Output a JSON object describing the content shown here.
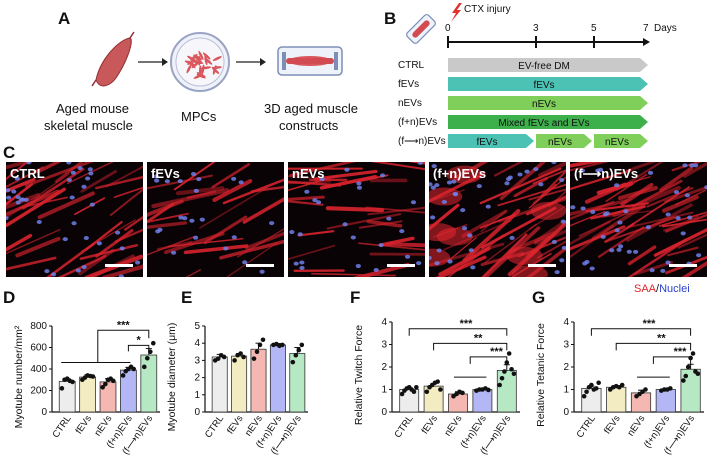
{
  "panel_labels": {
    "A": "A",
    "B": "B",
    "C": "C",
    "D": "D",
    "E": "E",
    "F": "F",
    "G": "G"
  },
  "panel_a": {
    "captions": [
      "Aged mouse",
      "skeletal muscle",
      "MPCs",
      "3D aged muscle",
      "constructs"
    ]
  },
  "panel_b": {
    "injury_label": "CTX injury",
    "days_label": "Days",
    "ticks": [
      "0",
      "3",
      "5",
      "7"
    ],
    "rows": [
      {
        "label": "CTRL",
        "segments": [
          {
            "text": "EV-free DM",
            "color": "#c9c9c9"
          }
        ]
      },
      {
        "label": "fEVs",
        "segments": [
          {
            "text": "fEVs",
            "color": "#4cc2b5"
          }
        ]
      },
      {
        "label": "nEVs",
        "segments": [
          {
            "text": "nEVs",
            "color": "#7fcf5a"
          }
        ]
      },
      {
        "label": "(f+n)EVs",
        "segments": [
          {
            "text": "Mixed fEVs and EVs",
            "color": "#3db04c"
          }
        ]
      },
      {
        "label": "(f⟶n)EVs",
        "segments": [
          {
            "text": "fEVs",
            "color": "#4cc2b5"
          },
          {
            "text": "nEVs",
            "color": "#7fcf5a"
          },
          {
            "text": "nEVs",
            "color": "#7fcf5a"
          }
        ]
      }
    ]
  },
  "panel_c": {
    "images": [
      "CTRL",
      "fEVs",
      "nEVs",
      "(f+n)EVs",
      "(f⟶n)EVs"
    ],
    "legend_saa": "SAA",
    "legend_sep": "/",
    "legend_nuclei": "Nuclei",
    "colors": {
      "saa": "#e0242a",
      "nuclei": "#2b3fd0"
    }
  },
  "chart_data": [
    {
      "panel": "D",
      "type": "bar",
      "categories": [
        "CTRL",
        "fEVs",
        "nEVs",
        "(f+n)EVs",
        "(f⟶n)EVs"
      ],
      "values": [
        285,
        325,
        280,
        390,
        530
      ],
      "errors": [
        25,
        22,
        30,
        25,
        60
      ],
      "points": [
        [
          220,
          300,
          310,
          290,
          280
        ],
        [
          300,
          320,
          340,
          335,
          330
        ],
        [
          230,
          260,
          300,
          310,
          290
        ],
        [
          340,
          380,
          400,
          420,
          400
        ],
        [
          420,
          500,
          560,
          640
        ]
      ],
      "ylabel": "Myotube number/mm²",
      "ylim": [
        0,
        800
      ],
      "yticks": [
        "0",
        "200",
        "400",
        "600",
        "800"
      ],
      "colors": [
        "#ededed",
        "#f3ebc2",
        "#f4b7b1",
        "#b3b7f5",
        "#b7e8c4"
      ],
      "significance": [
        "***",
        "*"
      ]
    },
    {
      "panel": "E",
      "type": "bar",
      "categories": [
        "CTRL",
        "fEVs",
        "nEVs",
        "(f+n)EVs",
        "(f⟶n)EVs"
      ],
      "values": [
        3.2,
        3.25,
        3.65,
        3.9,
        3.4
      ],
      "errors": [
        0.15,
        0.15,
        0.35,
        0.08,
        0.35
      ],
      "points": [
        [
          3.0,
          3.1,
          3.3,
          3.2
        ],
        [
          3.0,
          3.3,
          3.4,
          3.2
        ],
        [
          3.1,
          3.5,
          3.9,
          4.2
        ],
        [
          3.9,
          3.95,
          3.85,
          3.9
        ],
        [
          2.9,
          3.3,
          3.6,
          3.9
        ]
      ],
      "ylabel": "Myotube diameter (μm)",
      "ylim": [
        0,
        5
      ],
      "yticks": [
        "0",
        "1",
        "2",
        "3",
        "4",
        "5"
      ],
      "colors": [
        "#ededed",
        "#f3ebc2",
        "#f4b7b1",
        "#b3b7f5",
        "#b7e8c4"
      ],
      "significance": []
    },
    {
      "panel": "F",
      "type": "bar",
      "categories": [
        "CTRL",
        "fEVs",
        "nEVs",
        "(f+n)EVs",
        "(f⟶n)EVs"
      ],
      "values": [
        1.0,
        1.15,
        0.8,
        1.0,
        1.85
      ],
      "errors": [
        0.08,
        0.12,
        0.1,
        0.03,
        0.25
      ],
      "points": [
        [
          0.8,
          0.95,
          1.05,
          1.1,
          1.0,
          0.9,
          1.1
        ],
        [
          0.9,
          1.1,
          1.2,
          1.3,
          1.35,
          1.0
        ],
        [
          0.7,
          0.8,
          0.9,
          0.85
        ],
        [
          0.95,
          1.0,
          1.0,
          1.05,
          0.98
        ],
        [
          1.2,
          1.5,
          1.8,
          2.2,
          2.6,
          1.9,
          1.7
        ]
      ],
      "ylabel": "Relative Twitch Force",
      "ylim": [
        0,
        4
      ],
      "yticks": [
        "0",
        "1",
        "2",
        "3",
        "4"
      ],
      "colors": [
        "#ededed",
        "#f3ebc2",
        "#f4b7b1",
        "#b3b7f5",
        "#b7e8c4"
      ],
      "significance": [
        "***",
        "**",
        "***"
      ]
    },
    {
      "panel": "G",
      "type": "bar",
      "categories": [
        "CTRL",
        "fEVs",
        "nEVs",
        "(f+n)EVs",
        "(f⟶n)EVs"
      ],
      "values": [
        1.05,
        1.1,
        0.85,
        1.0,
        1.9
      ],
      "errors": [
        0.1,
        0.05,
        0.12,
        0.03,
        0.22
      ],
      "points": [
        [
          0.7,
          0.9,
          1.1,
          1.2,
          1.0,
          1.05,
          1.3
        ],
        [
          1.0,
          1.1,
          1.15,
          1.1,
          1.2
        ],
        [
          0.7,
          0.8,
          0.9,
          1.0
        ],
        [
          0.95,
          1.0,
          1.0,
          1.05
        ],
        [
          1.4,
          1.6,
          2.0,
          2.4,
          2.6,
          1.8,
          1.7
        ]
      ],
      "ylabel": "Relative Tetanic Force",
      "ylim": [
        0,
        4
      ],
      "yticks": [
        "0",
        "1",
        "2",
        "3",
        "4"
      ],
      "colors": [
        "#ededed",
        "#f3ebc2",
        "#f4b7b1",
        "#b3b7f5",
        "#b7e8c4"
      ],
      "significance": [
        "***",
        "**",
        "***"
      ]
    }
  ]
}
